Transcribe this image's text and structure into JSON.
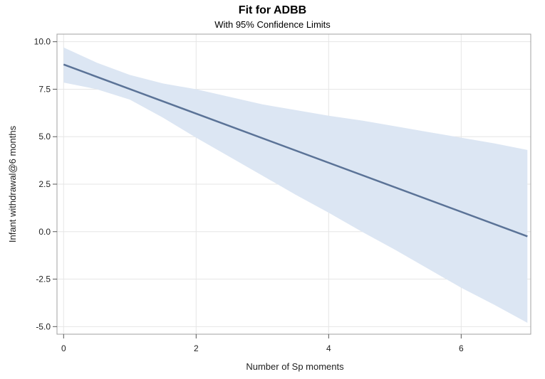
{
  "chart_data": {
    "type": "line",
    "title": "Fit for ADBB",
    "subtitle": "With 95% Confidence Limits",
    "xlabel": "Number of Sp moments",
    "ylabel": "Infant withdrawal@6 months",
    "xlim": [
      0,
      7
    ],
    "ylim": [
      -5.0,
      10.0
    ],
    "x_ticks": [
      0,
      2,
      4,
      6
    ],
    "y_ticks": [
      -5.0,
      -2.5,
      0.0,
      2.5,
      5.0,
      7.5,
      10.0
    ],
    "x_tick_labels": [
      "0",
      "2",
      "4",
      "6"
    ],
    "y_tick_labels": [
      "-5.0",
      "-2.5",
      "0.0",
      "2.5",
      "5.0",
      "7.5",
      "10.0"
    ],
    "grid": true,
    "fit_line": {
      "x": [
        0,
        7
      ],
      "y": [
        8.8,
        -0.25
      ]
    },
    "confidence_band": {
      "x": [
        0,
        0.5,
        1,
        1.5,
        2,
        2.5,
        3,
        3.5,
        4,
        4.5,
        5,
        5.5,
        6,
        6.5,
        7
      ],
      "upper": [
        9.7,
        8.9,
        8.25,
        7.8,
        7.5,
        7.1,
        6.7,
        6.4,
        6.1,
        5.85,
        5.55,
        5.25,
        4.95,
        4.65,
        4.3
      ],
      "lower": [
        7.85,
        7.5,
        6.95,
        6.0,
        4.95,
        3.95,
        2.95,
        1.95,
        1.0,
        0.0,
        -0.95,
        -1.95,
        -2.95,
        -3.85,
        -4.8
      ]
    },
    "colors": {
      "line": "#5b7397",
      "band": "#dce6f3",
      "grid": "#e6e6e6",
      "frame": "#a0a0a0"
    }
  }
}
